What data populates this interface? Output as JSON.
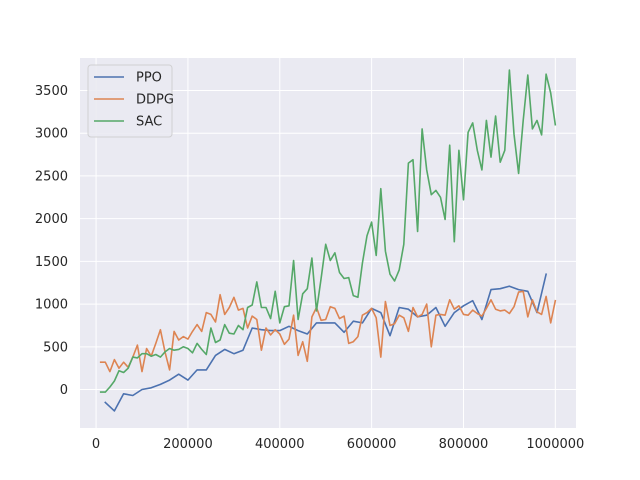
{
  "chart_data": {
    "type": "line",
    "title": "",
    "xlabel": "",
    "ylabel": "",
    "xlim": [
      -35000,
      1045000
    ],
    "ylim": [
      -450,
      3880
    ],
    "grid": true,
    "legend_position": "top-left",
    "x_ticks": [
      {
        "value": 0,
        "label": "0"
      },
      {
        "value": 200000,
        "label": "200000"
      },
      {
        "value": 400000,
        "label": "400000"
      },
      {
        "value": 600000,
        "label": "600000"
      },
      {
        "value": 800000,
        "label": "800000"
      },
      {
        "value": 1000000,
        "label": "1000000"
      }
    ],
    "y_ticks": [
      {
        "value": 0,
        "label": "0"
      },
      {
        "value": 500,
        "label": "500"
      },
      {
        "value": 1000,
        "label": "1000"
      },
      {
        "value": 1500,
        "label": "1500"
      },
      {
        "value": 2000,
        "label": "2000"
      },
      {
        "value": 2500,
        "label": "2500"
      },
      {
        "value": 3000,
        "label": "3000"
      },
      {
        "value": 3500,
        "label": "3500"
      }
    ],
    "series": [
      {
        "name": "PPO",
        "color": "#4c72b0",
        "x": [
          20000,
          40000,
          60000,
          80000,
          100000,
          120000,
          140000,
          160000,
          180000,
          200000,
          220000,
          240000,
          260000,
          280000,
          300000,
          320000,
          340000,
          360000,
          380000,
          400000,
          420000,
          440000,
          460000,
          480000,
          500000,
          520000,
          540000,
          560000,
          580000,
          600000,
          620000,
          640000,
          660000,
          680000,
          700000,
          720000,
          740000,
          760000,
          780000,
          800000,
          820000,
          840000,
          860000,
          880000,
          900000,
          920000,
          940000,
          960000,
          980000
        ],
        "y": [
          -150,
          -250,
          -50,
          -70,
          0,
          20,
          60,
          110,
          180,
          110,
          230,
          230,
          400,
          470,
          420,
          460,
          720,
          700,
          690,
          690,
          740,
          690,
          650,
          780,
          780,
          780,
          670,
          800,
          780,
          950,
          900,
          630,
          960,
          940,
          850,
          870,
          960,
          740,
          900,
          980,
          1040,
          820,
          1170,
          1180,
          1210,
          1170,
          1150,
          900,
          1350
        ]
      },
      {
        "name": "DDPG",
        "color": "#dd8452",
        "x": [
          10000,
          20000,
          30000,
          40000,
          50000,
          60000,
          70000,
          80000,
          90000,
          100000,
          110000,
          120000,
          130000,
          140000,
          150000,
          160000,
          170000,
          180000,
          190000,
          200000,
          210000,
          220000,
          230000,
          240000,
          250000,
          260000,
          270000,
          280000,
          290000,
          300000,
          310000,
          320000,
          330000,
          340000,
          350000,
          360000,
          370000,
          380000,
          390000,
          400000,
          410000,
          420000,
          430000,
          440000,
          450000,
          460000,
          470000,
          480000,
          490000,
          500000,
          510000,
          520000,
          530000,
          540000,
          550000,
          560000,
          570000,
          580000,
          590000,
          600000,
          610000,
          620000,
          630000,
          640000,
          650000,
          660000,
          670000,
          680000,
          690000,
          700000,
          710000,
          720000,
          730000,
          740000,
          750000,
          760000,
          770000,
          780000,
          790000,
          800000,
          810000,
          820000,
          830000,
          840000,
          850000,
          860000,
          870000,
          880000,
          890000,
          900000,
          910000,
          920000,
          930000,
          940000,
          950000,
          960000,
          970000,
          980000,
          990000,
          1000000
        ],
        "y": [
          320,
          320,
          210,
          350,
          250,
          320,
          260,
          380,
          520,
          210,
          480,
          390,
          540,
          700,
          440,
          230,
          680,
          580,
          620,
          590,
          680,
          760,
          680,
          900,
          880,
          790,
          1110,
          880,
          960,
          1080,
          930,
          950,
          720,
          860,
          820,
          460,
          720,
          640,
          700,
          650,
          530,
          590,
          870,
          400,
          560,
          330,
          850,
          960,
          810,
          820,
          970,
          950,
          830,
          860,
          540,
          560,
          620,
          870,
          900,
          950,
          840,
          380,
          1030,
          750,
          770,
          870,
          840,
          680,
          960,
          850,
          880,
          1000,
          500,
          870,
          880,
          870,
          1050,
          940,
          980,
          880,
          870,
          930,
          890,
          860,
          950,
          1050,
          940,
          920,
          930,
          890,
          970,
          1140,
          1150,
          850,
          1050,
          910,
          880,
          1090,
          780,
          1040
        ]
      },
      {
        "name": "SAC",
        "color": "#55a868",
        "x": [
          10000,
          20000,
          30000,
          40000,
          50000,
          60000,
          70000,
          80000,
          90000,
          100000,
          110000,
          120000,
          130000,
          140000,
          150000,
          160000,
          170000,
          180000,
          190000,
          200000,
          210000,
          220000,
          230000,
          240000,
          250000,
          260000,
          270000,
          280000,
          290000,
          300000,
          310000,
          320000,
          330000,
          340000,
          350000,
          360000,
          370000,
          380000,
          390000,
          400000,
          410000,
          420000,
          430000,
          440000,
          450000,
          460000,
          470000,
          480000,
          490000,
          500000,
          510000,
          520000,
          530000,
          540000,
          550000,
          560000,
          570000,
          580000,
          590000,
          600000,
          610000,
          620000,
          630000,
          640000,
          650000,
          660000,
          670000,
          680000,
          690000,
          700000,
          710000,
          720000,
          730000,
          740000,
          750000,
          760000,
          770000,
          780000,
          790000,
          800000,
          810000,
          820000,
          830000,
          840000,
          850000,
          860000,
          870000,
          880000,
          890000,
          900000,
          910000,
          920000,
          930000,
          940000,
          950000,
          960000,
          970000,
          980000,
          990000,
          1000000
        ],
        "y": [
          -30,
          -30,
          30,
          100,
          220,
          200,
          250,
          380,
          370,
          420,
          420,
          390,
          410,
          380,
          440,
          480,
          460,
          470,
          500,
          480,
          430,
          540,
          470,
          410,
          720,
          550,
          580,
          760,
          660,
          650,
          750,
          700,
          960,
          990,
          1260,
          960,
          960,
          830,
          1150,
          780,
          970,
          980,
          1510,
          820,
          1120,
          1180,
          1540,
          920,
          1300,
          1700,
          1510,
          1600,
          1370,
          1300,
          1310,
          1100,
          1080,
          1480,
          1800,
          1960,
          1570,
          2350,
          1620,
          1350,
          1270,
          1400,
          1700,
          2650,
          2690,
          1850,
          3050,
          2570,
          2280,
          2330,
          2250,
          1990,
          2860,
          1730,
          2800,
          2220,
          3010,
          3120,
          2800,
          2570,
          3150,
          2720,
          3200,
          2660,
          2800,
          3740,
          2990,
          2530,
          3150,
          3680,
          3050,
          3150,
          2980,
          3690,
          3470,
          3100
        ]
      }
    ]
  }
}
